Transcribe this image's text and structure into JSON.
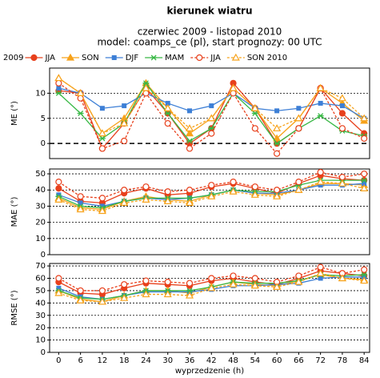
{
  "title": "kierunek wiatru",
  "subtitle": [
    "czerwiec 2009 - listopad 2010",
    "model: coamps_ce (pl), start prognozy: 00 UTC"
  ],
  "legend_prefix": "2009",
  "chart_data": [
    {
      "type": "line",
      "ylabel": "ME (°)",
      "x": [
        0,
        6,
        12,
        18,
        24,
        30,
        36,
        42,
        48,
        54,
        60,
        66,
        72,
        78,
        84
      ],
      "xlim": [
        -2.5,
        85.5
      ],
      "ylim": [
        -3,
        15
      ],
      "yticks": [
        0,
        5,
        10
      ],
      "grid": true,
      "series": [
        {
          "name": "JJA",
          "color": "#e8401c",
          "marker": "circle",
          "dash": false,
          "values": [
            10.5,
            10,
            -1,
            4,
            11,
            6,
            0,
            3,
            12,
            7,
            0,
            3,
            11,
            6,
            2
          ]
        },
        {
          "name": "SON",
          "color": "#f7a21b",
          "marker": "triangle",
          "dash": false,
          "values": [
            13,
            10,
            2,
            5,
            12,
            7,
            2,
            5,
            11,
            7,
            1,
            5,
            11,
            8,
            4.5
          ]
        },
        {
          "name": "DJF",
          "color": "#3d7fd6",
          "marker": "square",
          "dash": false,
          "values": [
            11,
            10,
            7,
            7.5,
            10,
            8,
            6.5,
            7.5,
            10,
            7,
            6.5,
            7,
            8,
            7.5,
            5
          ]
        },
        {
          "name": "MAM",
          "color": "#38b845",
          "marker": "cross",
          "dash": false,
          "values": [
            10,
            6,
            1,
            4,
            12,
            6,
            0.5,
            3,
            10,
            6,
            0,
            3,
            5.5,
            2.5,
            1.5
          ]
        },
        {
          "name": "JJA",
          "color": "#e8401c",
          "marker": "open-circle",
          "dash": true,
          "values": [
            12,
            9,
            -1,
            0.5,
            10,
            4,
            -1,
            2,
            10,
            3,
            -2,
            3,
            11,
            3,
            1
          ]
        },
        {
          "name": "SON 2010",
          "color": "#f7a21b",
          "marker": "open-triangle",
          "dash": true,
          "values": [
            13,
            10,
            2,
            4,
            11,
            7,
            3,
            5,
            11,
            7,
            3,
            5,
            11,
            9,
            5
          ]
        }
      ]
    },
    {
      "type": "line",
      "ylabel": "MAE (°)",
      "x": [
        0,
        6,
        12,
        18,
        24,
        30,
        36,
        42,
        48,
        54,
        60,
        66,
        72,
        78,
        84
      ],
      "xlim": [
        -2.5,
        85.5
      ],
      "ylim": [
        0,
        53
      ],
      "yticks": [
        0,
        10,
        20,
        30,
        40,
        50
      ],
      "grid": true,
      "series": [
        {
          "values": [
            41,
            33,
            32,
            38,
            41,
            37,
            38,
            42,
            44,
            41,
            38,
            44,
            49,
            47,
            46
          ]
        },
        {
          "values": [
            35,
            29,
            28,
            33,
            36,
            34,
            33,
            37,
            40,
            38,
            37,
            40,
            44,
            44,
            43
          ]
        },
        {
          "values": [
            37,
            32,
            30,
            33,
            35,
            34,
            35,
            37,
            40,
            38,
            38,
            40,
            43,
            43,
            44
          ]
        },
        {
          "values": [
            36,
            30,
            29,
            33,
            35,
            35,
            35,
            37,
            40,
            39,
            39,
            43,
            46,
            46,
            46
          ]
        },
        {
          "values": [
            45,
            36,
            35,
            40,
            42,
            39,
            40,
            43,
            45,
            42,
            40,
            45,
            51,
            48,
            50
          ]
        },
        {
          "values": [
            34,
            28,
            27,
            32,
            34,
            33,
            32,
            36,
            39,
            37,
            36,
            40,
            45,
            44,
            41
          ]
        }
      ]
    },
    {
      "type": "line",
      "ylabel": "RMSE (°)",
      "xlabel": "wyprzedzenie (h)",
      "x": [
        0,
        6,
        12,
        18,
        24,
        30,
        36,
        42,
        48,
        54,
        60,
        66,
        72,
        78,
        84
      ],
      "xlim": [
        -2.5,
        85.5
      ],
      "ylim": [
        0,
        72
      ],
      "yticks": [
        0,
        10,
        20,
        30,
        40,
        50,
        60,
        70
      ],
      "grid": true,
      "xticks": [
        0,
        6,
        12,
        18,
        24,
        30,
        36,
        42,
        48,
        54,
        60,
        66,
        72,
        78,
        84
      ],
      "series": [
        {
          "values": [
            57,
            48,
            47,
            52,
            56,
            55,
            54,
            58,
            60,
            57,
            55,
            60,
            66,
            64,
            62
          ]
        },
        {
          "values": [
            50,
            43,
            41,
            46,
            50,
            50,
            48,
            53,
            57,
            55,
            54,
            58,
            63,
            60,
            59
          ]
        },
        {
          "values": [
            52,
            45,
            43,
            46,
            49,
            49,
            49,
            51,
            54,
            54,
            55,
            56,
            60,
            61,
            61
          ]
        },
        {
          "values": [
            50,
            44,
            43,
            46,
            50,
            50,
            50,
            53,
            57,
            56,
            56,
            58,
            63,
            62,
            63
          ]
        },
        {
          "values": [
            60,
            50,
            50,
            55,
            58,
            57,
            56,
            60,
            62,
            60,
            57,
            62,
            69,
            64,
            67
          ]
        },
        {
          "values": [
            48,
            42,
            41,
            44,
            47,
            47,
            46,
            52,
            55,
            54,
            53,
            57,
            64,
            60,
            58
          ]
        }
      ]
    }
  ]
}
